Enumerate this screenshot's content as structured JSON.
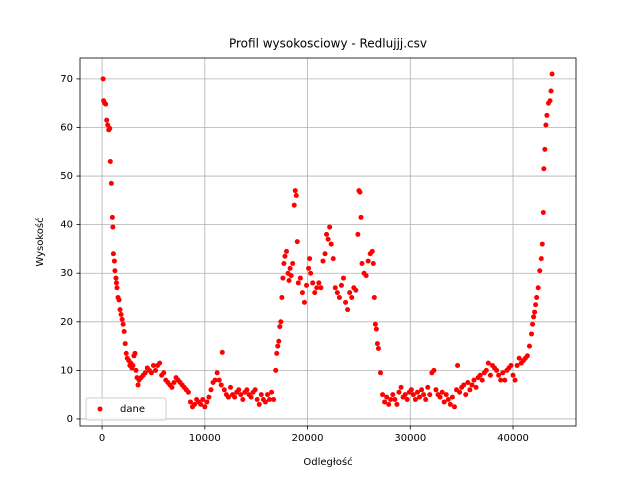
{
  "chart_data": {
    "type": "scatter",
    "title": "Profil wysokosciowy - Redlujjj.csv",
    "x_label": "Odległość",
    "y_label": "Wysokość",
    "x": [
      100,
      150,
      250,
      350,
      450,
      550,
      650,
      750,
      800,
      900,
      1000,
      1050,
      1100,
      1200,
      1250,
      1350,
      1400,
      1450,
      1550,
      1650,
      1750,
      1850,
      1950,
      2050,
      2150,
      2250,
      2350,
      2450,
      2600,
      2700,
      2800,
      2900,
      3000,
      3100,
      3200,
      3300,
      3400,
      3500,
      3600,
      3800,
      4000,
      4200,
      4400,
      4600,
      4800,
      5000,
      5200,
      5400,
      5600,
      5800,
      6000,
      6200,
      6400,
      6600,
      6800,
      7000,
      7200,
      7400,
      7600,
      7800,
      8000,
      8200,
      8400,
      8600,
      8800,
      9000,
      9200,
      9400,
      9600,
      9800,
      10000,
      10200,
      10400,
      10600,
      10800,
      11000,
      11200,
      11400,
      11600,
      11700,
      11900,
      12100,
      12300,
      12500,
      12700,
      12900,
      13100,
      13300,
      13500,
      13700,
      13900,
      14100,
      14300,
      14500,
      14700,
      14900,
      15100,
      15300,
      15500,
      15700,
      15900,
      16100,
      16300,
      16500,
      16700,
      16900,
      17000,
      17100,
      17200,
      17300,
      17400,
      17500,
      17600,
      17700,
      17800,
      17950,
      18100,
      18200,
      18300,
      18400,
      18550,
      18700,
      18800,
      18900,
      19000,
      19100,
      19300,
      19500,
      19700,
      19900,
      20100,
      20200,
      20300,
      20500,
      20700,
      20900,
      21100,
      21300,
      21500,
      21700,
      21850,
      22000,
      22150,
      22300,
      22500,
      22700,
      22900,
      23100,
      23300,
      23500,
      23700,
      23900,
      24100,
      24300,
      24500,
      24700,
      24900,
      25000,
      25100,
      25200,
      25300,
      25500,
      25700,
      25900,
      26100,
      26300,
      26400,
      26500,
      26600,
      26700,
      26800,
      26900,
      27100,
      27300,
      27500,
      27700,
      27900,
      28100,
      28300,
      28500,
      28700,
      28900,
      29100,
      29300,
      29500,
      29700,
      29900,
      30100,
      30300,
      30500,
      30700,
      30900,
      31100,
      31300,
      31500,
      31700,
      31900,
      32100,
      32300,
      32500,
      32700,
      32900,
      33100,
      33300,
      33500,
      33700,
      33900,
      34100,
      34300,
      34500,
      34600,
      34800,
      35000,
      35200,
      35400,
      35600,
      35800,
      36000,
      36200,
      36400,
      36600,
      36800,
      37000,
      37200,
      37400,
      37600,
      37800,
      38000,
      38200,
      38400,
      38600,
      38800,
      39000,
      39200,
      39400,
      39600,
      39800,
      40000,
      40200,
      40400,
      40600,
      40800,
      41000,
      41200,
      41400,
      41600,
      41800,
      41900,
      42000,
      42100,
      42200,
      42300,
      42450,
      42600,
      42750,
      42850,
      42950,
      43000,
      43100,
      43200,
      43300,
      43450,
      43600,
      43700,
      43800
    ],
    "series": [
      {
        "name": "dane",
        "color": "#ff0000",
        "values": [
          70,
          65.5,
          65,
          64.8,
          61.5,
          60.5,
          59.5,
          59.8,
          53,
          48.5,
          41.5,
          39.5,
          34,
          32.5,
          30.5,
          29,
          28,
          27,
          25,
          24.5,
          22.5,
          21.5,
          20.5,
          19.5,
          18,
          15.5,
          13.5,
          12.5,
          12,
          11,
          11.5,
          10.5,
          11,
          13,
          13.5,
          10,
          8.5,
          7,
          8,
          8.5,
          9,
          9.5,
          10.5,
          10,
          9.5,
          11,
          10,
          11,
          11.5,
          9,
          9.5,
          8,
          7.5,
          7,
          6.5,
          7.5,
          8.5,
          8,
          7.5,
          7,
          6.5,
          6,
          5.5,
          3.5,
          2.5,
          3,
          4,
          3.5,
          3,
          4,
          2.5,
          3.5,
          4.5,
          6,
          7.5,
          8,
          9.5,
          8,
          7,
          13.7,
          6,
          5,
          4.5,
          6.5,
          5,
          4.5,
          5.5,
          6,
          5,
          4,
          5.5,
          6,
          5,
          4.5,
          5.5,
          6,
          4,
          3,
          5,
          4,
          3.5,
          5,
          4,
          5.5,
          4,
          10,
          13.5,
          15,
          16,
          19,
          20,
          25,
          29,
          32,
          33.5,
          34.5,
          30,
          28.5,
          31,
          29.5,
          32,
          44,
          47,
          46,
          36.5,
          28,
          29,
          26,
          24,
          27.5,
          31,
          33,
          30,
          28,
          26,
          27,
          28,
          27,
          32.5,
          34,
          38,
          37,
          39.5,
          36,
          33,
          27,
          26,
          25,
          27.5,
          29,
          24,
          22.5,
          26,
          25,
          27,
          26.5,
          38,
          47,
          46.7,
          41.5,
          32,
          30,
          29.5,
          32.5,
          34,
          34.5,
          32,
          25,
          19.5,
          18.5,
          15.5,
          14.5,
          9.5,
          5,
          3.5,
          4.5,
          3,
          4,
          5,
          4,
          3,
          5.5,
          6.5,
          4.5,
          5,
          4,
          5.5,
          6,
          5,
          4,
          5.5,
          4.5,
          6,
          5,
          4,
          6.5,
          5,
          9.5,
          10,
          6,
          5,
          4.5,
          5.5,
          3.5,
          5,
          4,
          3,
          4.5,
          2.5,
          6,
          11,
          5.5,
          6.5,
          7,
          5,
          7.5,
          6,
          7,
          8,
          6.5,
          8.5,
          9,
          8,
          9.5,
          10,
          11.5,
          9,
          11,
          10.5,
          10,
          9,
          8,
          9.5,
          8,
          10,
          10.5,
          11,
          9,
          8,
          11,
          12.5,
          11.5,
          12,
          12.5,
          13,
          15,
          17.5,
          19.5,
          21,
          22,
          23.5,
          25,
          27,
          30.5,
          33,
          36,
          42.5,
          51.5,
          55.5,
          60.5,
          62.5,
          65,
          65.5,
          67.5,
          71
        ]
      }
    ],
    "xlim": [
      -2150,
      46130
    ],
    "ylim": [
      -1.45,
      74.3
    ],
    "xticks": [
      0,
      10000,
      20000,
      30000,
      40000
    ],
    "yticks": [
      0,
      10,
      20,
      30,
      40,
      50,
      60,
      70
    ],
    "grid": true,
    "legend": "lower left"
  }
}
